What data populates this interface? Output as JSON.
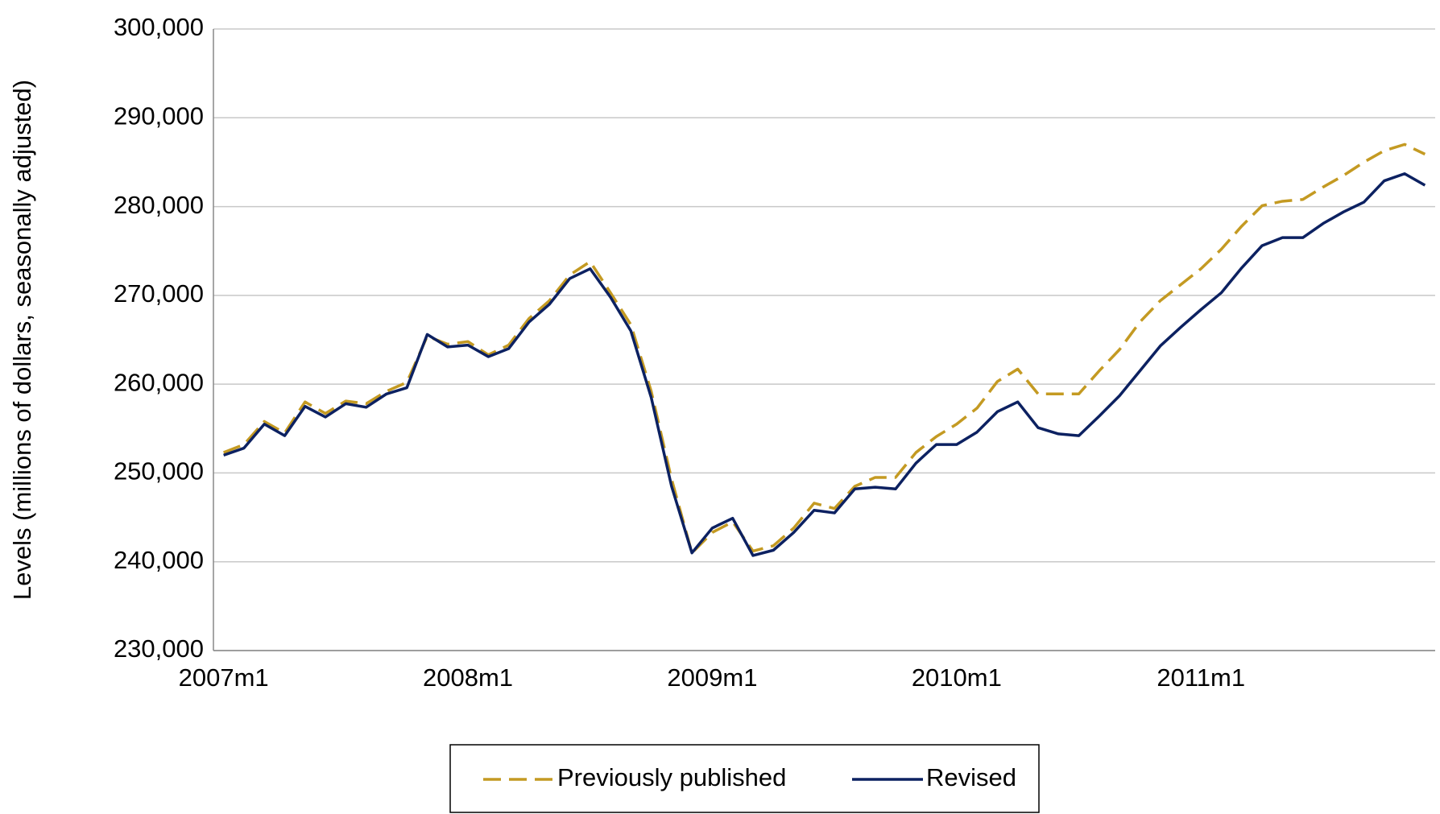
{
  "chart_data": {
    "type": "line",
    "y_label": "Levels (millions of dollars, seasonally adjusted)",
    "categories": [
      "2007m1",
      null,
      null,
      null,
      null,
      null,
      null,
      null,
      null,
      null,
      null,
      null,
      "2008m1",
      null,
      null,
      null,
      null,
      null,
      null,
      null,
      null,
      null,
      null,
      null,
      "2009m1",
      null,
      null,
      null,
      null,
      null,
      null,
      null,
      null,
      null,
      null,
      null,
      "2010m1",
      null,
      null,
      null,
      null,
      null,
      null,
      null,
      null,
      null,
      null,
      null,
      "2011m1",
      null,
      null,
      null,
      null,
      null,
      null,
      null,
      null,
      null,
      null,
      null
    ],
    "series": [
      {
        "name": "Previously published",
        "color": "#c49a22",
        "dashed": true,
        "values": [
          252300,
          253200,
          255800,
          254500,
          258000,
          256700,
          258100,
          257800,
          259200,
          260200,
          265400,
          264500,
          264800,
          263300,
          264400,
          267400,
          269400,
          272300,
          273800,
          270300,
          266700,
          259200,
          249300,
          241000,
          243300,
          244500,
          241200,
          241800,
          243800,
          246600,
          246000,
          248500,
          249500,
          249500,
          252300,
          254100,
          255500,
          257300,
          260300,
          261700,
          258900,
          258900,
          258900,
          261500,
          263900,
          267000,
          269400,
          271200,
          273000,
          275200,
          277800,
          280100,
          280600,
          280800,
          282200,
          283500,
          285000,
          286300,
          287000,
          285900
        ]
      },
      {
        "name": "Revised",
        "color": "#0c2161",
        "dashed": false,
        "values": [
          252000,
          252800,
          255500,
          254200,
          257500,
          256300,
          257800,
          257400,
          258900,
          259600,
          265600,
          264200,
          264400,
          263100,
          264000,
          267000,
          269000,
          271900,
          273000,
          269800,
          266000,
          258500,
          248500,
          241000,
          243800,
          244900,
          240700,
          241300,
          243300,
          245800,
          245500,
          248200,
          248400,
          248200,
          251100,
          253200,
          253200,
          254600,
          256900,
          258000,
          255100,
          254400,
          254200,
          256400,
          258700,
          261500,
          264300,
          266400,
          268400,
          270300,
          273100,
          275600,
          276500,
          276500,
          278100,
          279400,
          280500,
          282900,
          283700,
          282400
        ]
      }
    ],
    "ylim": [
      230000,
      300000
    ],
    "yticks": [
      {
        "value": 230000,
        "label": "230,000"
      },
      {
        "value": 240000,
        "label": "240,000"
      },
      {
        "value": 250000,
        "label": "250,000"
      },
      {
        "value": 260000,
        "label": "260,000"
      },
      {
        "value": 270000,
        "label": "270,000"
      },
      {
        "value": 280000,
        "label": "280,000"
      },
      {
        "value": 290000,
        "label": "290,000"
      },
      {
        "value": 300000,
        "label": "300,000"
      }
    ],
    "grid": true,
    "legend": "bottom"
  }
}
